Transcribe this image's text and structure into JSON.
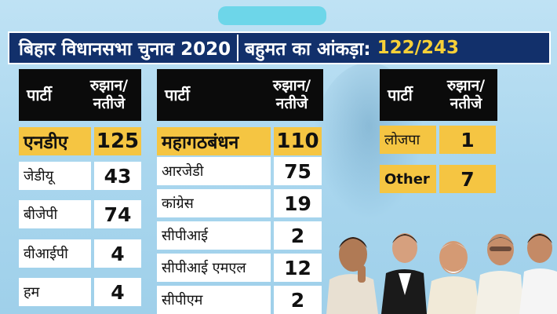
{
  "banner": {
    "title": "बिहार विधानसभा चुनाव 2020",
    "majority_label": "बहुमत का आंकड़ा:",
    "majority_value": "122/243"
  },
  "header": {
    "party": "पार्टी",
    "trend_line1": "रुझान/",
    "trend_line2": "नतीजे"
  },
  "nda": {
    "lead": {
      "name": "एनडीए",
      "value": "125"
    },
    "members": [
      {
        "name": "जेडीयू",
        "value": "43"
      },
      {
        "name": "बीजेपी",
        "value": "74"
      },
      {
        "name": "वीआईपी",
        "value": "4"
      },
      {
        "name": "हम",
        "value": "4"
      }
    ]
  },
  "mgb": {
    "lead": {
      "name": "महागठबंधन",
      "value": "110"
    },
    "members": [
      {
        "name": "आरजेडी",
        "value": "75"
      },
      {
        "name": "कांग्रेस",
        "value": "19"
      },
      {
        "name": "सीपीआई",
        "value": "2"
      },
      {
        "name": "सीपीआई एमएल",
        "value": "12"
      },
      {
        "name": "सीपीएम",
        "value": "2"
      }
    ]
  },
  "others": [
    {
      "name": "लोजपा",
      "value": "1"
    },
    {
      "name": "Other",
      "value": "7"
    }
  ],
  "colors": {
    "banner_bg": "#12306b",
    "highlight": "#f5c542",
    "majority_text": "#f7d038",
    "background": "#bfe2f4"
  }
}
